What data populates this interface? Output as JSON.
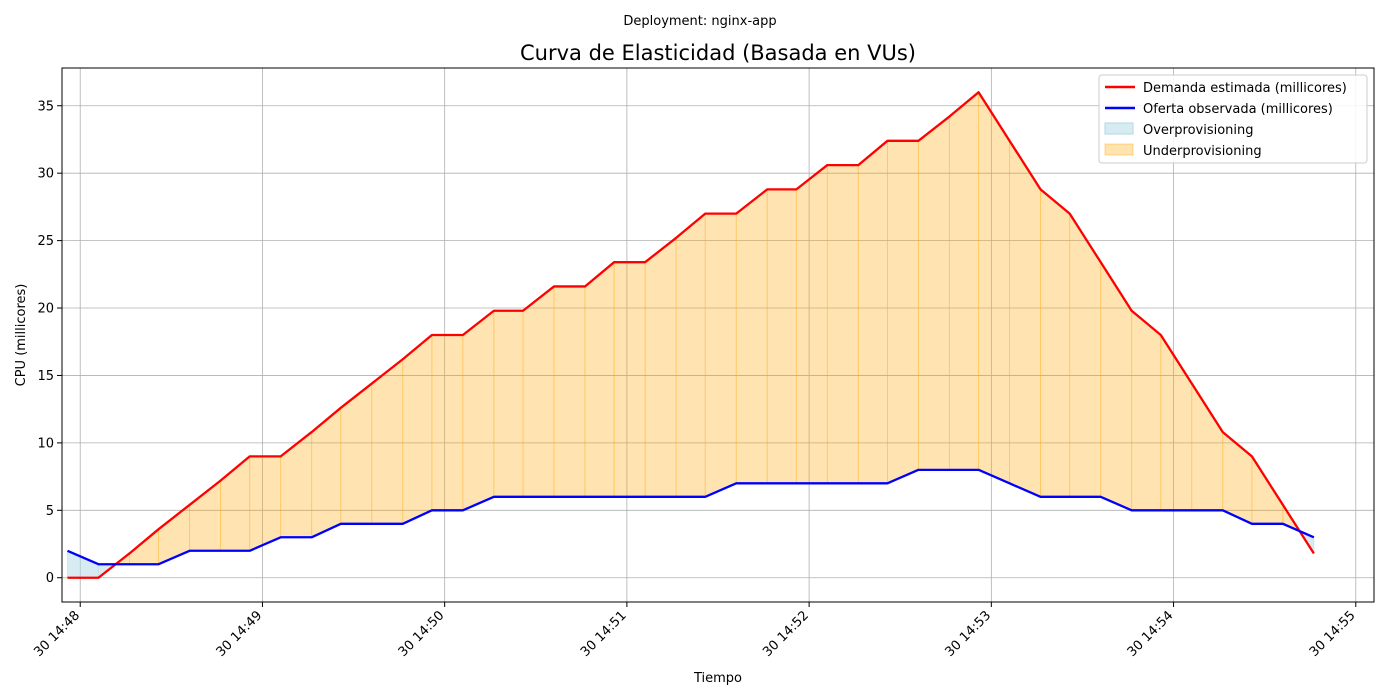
{
  "suptitle": "Deployment: nginx-app",
  "chart_data": {
    "type": "line",
    "title": "Curva de Elasticidad (Basada en VUs)",
    "xlabel": "Tiempo",
    "ylabel": "CPU (millicores)",
    "x_unit": "minutes",
    "xlim": [
      47.9,
      55.1
    ],
    "ylim": [
      -1.8,
      37.8
    ],
    "grid": true,
    "legend_position": "top-right",
    "x_ticks": [
      {
        "value": 48,
        "label": "30 14:48"
      },
      {
        "value": 49,
        "label": "30 14:49"
      },
      {
        "value": 50,
        "label": "30 14:50"
      },
      {
        "value": 51,
        "label": "30 14:51"
      },
      {
        "value": 52,
        "label": "30 14:52"
      },
      {
        "value": 53,
        "label": "30 14:53"
      },
      {
        "value": 54,
        "label": "30 14:54"
      },
      {
        "value": 55,
        "label": "30 14:55"
      }
    ],
    "y_ticks": [
      0,
      5,
      10,
      15,
      20,
      25,
      30,
      35
    ],
    "x": [
      47.93,
      48.1,
      48.27,
      48.43,
      48.6,
      48.77,
      48.93,
      49.1,
      49.27,
      49.43,
      49.6,
      49.77,
      49.93,
      50.1,
      50.27,
      50.43,
      50.6,
      50.77,
      50.93,
      51.1,
      51.27,
      51.43,
      51.6,
      51.77,
      51.93,
      52.1,
      52.27,
      52.43,
      52.6,
      52.77,
      52.93,
      53.1,
      53.27,
      53.43,
      53.6,
      53.77,
      53.93,
      54.1,
      54.27,
      54.43,
      54.6,
      54.77
    ],
    "series": [
      {
        "name": "Demanda estimada (millicores)",
        "color": "#ff0000",
        "values": [
          0,
          0,
          1.8,
          3.6,
          5.4,
          7.2,
          9,
          9,
          10.8,
          12.6,
          14.4,
          16.2,
          18,
          18,
          19.8,
          19.8,
          21.6,
          21.6,
          23.4,
          23.4,
          25.2,
          27,
          27,
          28.8,
          28.8,
          30.6,
          30.6,
          32.4,
          32.4,
          34.2,
          36,
          32.4,
          28.8,
          27,
          23.4,
          19.8,
          18,
          14.4,
          10.8,
          9,
          5.4,
          1.8
        ]
      },
      {
        "name": "Oferta observada (millicores)",
        "color": "#0000ff",
        "values": [
          2,
          1,
          1,
          1,
          2,
          2,
          2,
          3,
          3,
          4,
          4,
          4,
          5,
          5,
          6,
          6,
          6,
          6,
          6,
          6,
          6,
          6,
          7,
          7,
          7,
          7,
          7,
          7,
          8,
          8,
          8,
          7,
          6,
          6,
          6,
          5,
          5,
          5,
          5,
          4,
          4,
          3
        ]
      }
    ],
    "fills": [
      {
        "name": "Overprovisioning",
        "color": "#add8e6",
        "rule": "oferta > demanda"
      },
      {
        "name": "Underprovisioning",
        "color": "#ffa500",
        "rule": "demanda > oferta"
      }
    ]
  }
}
